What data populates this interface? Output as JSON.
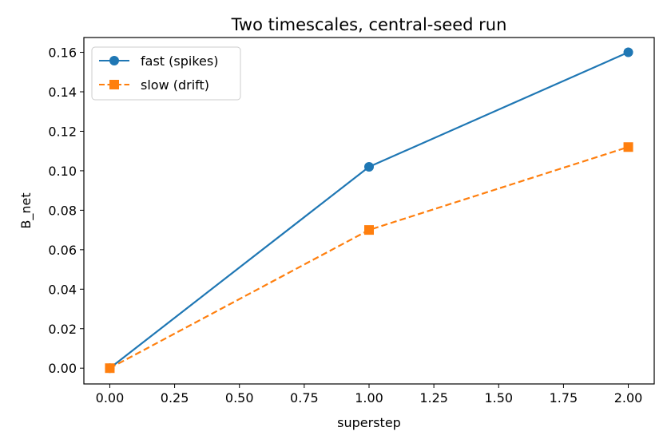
{
  "chart_data": {
    "type": "line",
    "title": "Two timescales, central-seed run",
    "xlabel": "superstep",
    "ylabel": "B_net",
    "x": [
      0,
      1,
      2
    ],
    "xlim": [
      -0.1,
      2.1
    ],
    "ylim": [
      -0.008,
      0.1675
    ],
    "xticks": [
      "0.00",
      "0.25",
      "0.50",
      "0.75",
      "1.00",
      "1.25",
      "1.50",
      "1.75",
      "2.00"
    ],
    "yticks": [
      "0.00",
      "0.02",
      "0.04",
      "0.06",
      "0.08",
      "0.10",
      "0.12",
      "0.14",
      "0.16"
    ],
    "grid": false,
    "legend_position": "top-left",
    "series": [
      {
        "name": "fast (spikes)",
        "values": [
          0.0,
          0.102,
          0.16
        ],
        "color": "#1f77b4",
        "marker": "circle",
        "line_style": "solid"
      },
      {
        "name": "slow (drift)",
        "values": [
          0.0,
          0.07,
          0.112
        ],
        "color": "#ff7f0e",
        "marker": "square",
        "line_style": "dashed"
      }
    ]
  }
}
